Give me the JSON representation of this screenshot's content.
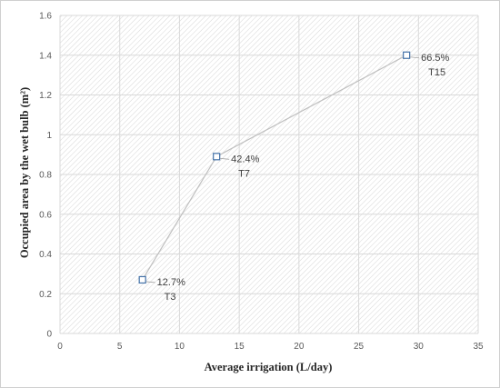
{
  "chart_data": {
    "type": "scatter",
    "title": "",
    "xlabel": "Average irrigation (L/day)",
    "ylabel": "Occupied area by the wet bulb (m²)",
    "xlim": [
      0,
      35
    ],
    "ylim": [
      0,
      1.6
    ],
    "x_ticks": [
      "0",
      "5",
      "10",
      "15",
      "20",
      "25",
      "30",
      "35"
    ],
    "y_ticks": [
      "0",
      "0.2",
      "0.4",
      "0.6",
      "0.8",
      "1",
      "1.2",
      "1.4",
      "1.6"
    ],
    "grid": true,
    "connected": true,
    "points": [
      {
        "x": 6.9,
        "y": 0.27,
        "label": "12.7%",
        "sublabel": "T3"
      },
      {
        "x": 13.1,
        "y": 0.89,
        "label": "42.4%",
        "sublabel": "T7"
      },
      {
        "x": 29.0,
        "y": 1.4,
        "label": "66.5%",
        "sublabel": "T15"
      }
    ],
    "colors": {
      "line": "#bfbfbf",
      "marker_edge": "#4472a8",
      "marker_fill": "#ffffff",
      "grid": "#d9d9d9",
      "hatch": "#d4d4d4"
    }
  }
}
